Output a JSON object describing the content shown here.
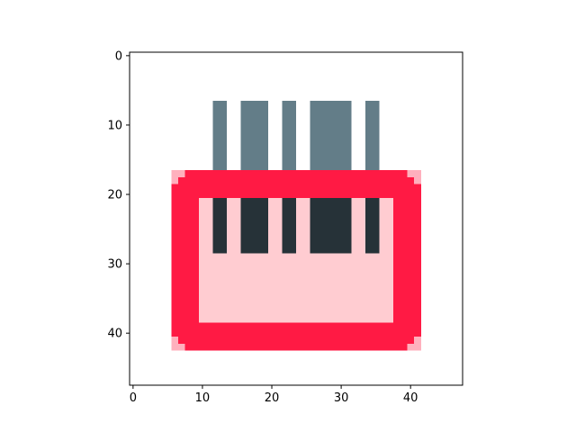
{
  "chart_data": {
    "type": "heatmap",
    "subtype": "image",
    "title": "",
    "xlabel": "",
    "ylabel": "",
    "image_size": [
      48,
      48
    ],
    "xlim": [
      -0.5,
      47.5
    ],
    "ylim": [
      47.5,
      -0.5
    ],
    "y_axis_inverted": true,
    "x_ticks": [
      0,
      10,
      20,
      30,
      40
    ],
    "y_ticks": [
      0,
      10,
      20,
      30,
      40
    ],
    "grid": false,
    "legend": "none",
    "colors": {
      "background": "#ffffff",
      "accent_red": "#ff1a44",
      "light_red": "#ffb0bd",
      "pink_fill": "#ffccd1",
      "slate": "#637d88",
      "dark_slate": "#263238"
    },
    "regions": [
      {
        "name": "strip-1-upper",
        "x0": 11.5,
        "x1": 13.5,
        "y0": 6.5,
        "y1": 16.5,
        "color": "#637d88"
      },
      {
        "name": "strip-2-upper",
        "x0": 15.5,
        "x1": 19.5,
        "y0": 6.5,
        "y1": 16.5,
        "color": "#637d88"
      },
      {
        "name": "strip-3-upper",
        "x0": 21.5,
        "x1": 23.5,
        "y0": 6.5,
        "y1": 16.5,
        "color": "#637d88"
      },
      {
        "name": "strip-4-upper",
        "x0": 25.5,
        "x1": 31.5,
        "y0": 6.5,
        "y1": 16.5,
        "color": "#637d88"
      },
      {
        "name": "strip-5-upper",
        "x0": 33.5,
        "x1": 35.5,
        "y0": 6.5,
        "y1": 16.5,
        "color": "#637d88"
      },
      {
        "name": "frame-outer-corner-soft",
        "x0": 5.5,
        "x1": 41.5,
        "y0": 16.5,
        "y1": 42.5,
        "color": "#ffb0bd"
      },
      {
        "name": "frame-outer-h",
        "x0": 7.5,
        "x1": 39.5,
        "y0": 16.5,
        "y1": 42.5,
        "color": "#ff1a44"
      },
      {
        "name": "frame-outer-v",
        "x0": 5.5,
        "x1": 41.5,
        "y0": 18.5,
        "y1": 40.5,
        "color": "#ff1a44"
      },
      {
        "name": "frame-corner-tl",
        "x0": 6.5,
        "x1": 7.5,
        "y0": 17.5,
        "y1": 18.5,
        "color": "#ff1a44"
      },
      {
        "name": "frame-corner-tr",
        "x0": 39.5,
        "x1": 40.5,
        "y0": 17.5,
        "y1": 18.5,
        "color": "#ff1a44"
      },
      {
        "name": "frame-corner-bl",
        "x0": 6.5,
        "x1": 7.5,
        "y0": 40.5,
        "y1": 41.5,
        "color": "#ff1a44"
      },
      {
        "name": "frame-corner-br",
        "x0": 39.5,
        "x1": 40.5,
        "y0": 40.5,
        "y1": 41.5,
        "color": "#ff1a44"
      },
      {
        "name": "inner-pink-fill",
        "x0": 9.5,
        "x1": 37.5,
        "y0": 20.5,
        "y1": 38.5,
        "color": "#ffccd1"
      },
      {
        "name": "strip-1-lower",
        "x0": 11.5,
        "x1": 13.5,
        "y0": 20.5,
        "y1": 28.5,
        "color": "#263238"
      },
      {
        "name": "strip-2-lower",
        "x0": 15.5,
        "x1": 19.5,
        "y0": 20.5,
        "y1": 28.5,
        "color": "#263238"
      },
      {
        "name": "strip-3-lower",
        "x0": 21.5,
        "x1": 23.5,
        "y0": 20.5,
        "y1": 28.5,
        "color": "#263238"
      },
      {
        "name": "strip-4-lower",
        "x0": 25.5,
        "x1": 31.5,
        "y0": 20.5,
        "y1": 28.5,
        "color": "#263238"
      },
      {
        "name": "strip-5-lower",
        "x0": 33.5,
        "x1": 35.5,
        "y0": 20.5,
        "y1": 28.5,
        "color": "#263238"
      }
    ]
  }
}
